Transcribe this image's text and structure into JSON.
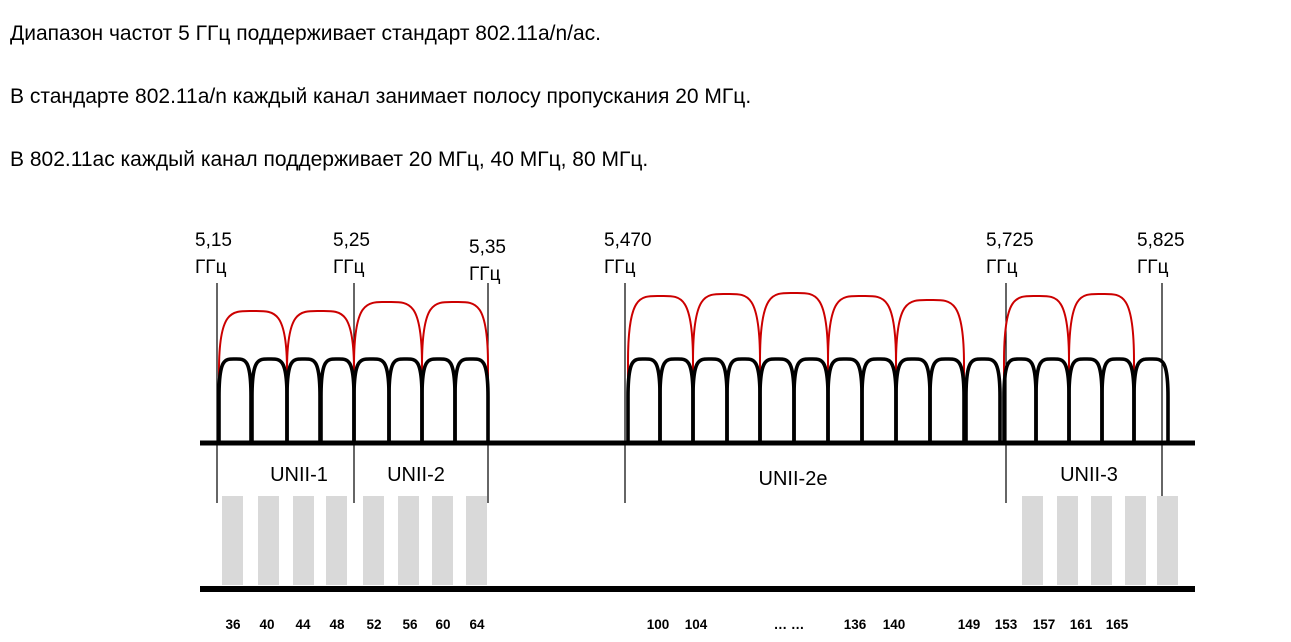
{
  "text_lines": [
    "Диапазон частот 5 ГГц поддерживает стандарт 802.11a/n/ac.",
    "В стандарте 802.11a/n каждый канал занимает полосу пропускания 20 МГц.",
    "В 802.11ac каждый канал поддерживает 20 МГц, 40 МГц, 80 МГц."
  ],
  "frequency_markers": [
    {
      "value": "5,15",
      "unit": "ГГц"
    },
    {
      "value": "5,25",
      "unit": "ГГц"
    },
    {
      "value": "5,35",
      "unit": "ГГц"
    },
    {
      "value": "5,470",
      "unit": "ГГц"
    },
    {
      "value": "5,725",
      "unit": "ГГц"
    },
    {
      "value": "5,825",
      "unit": "ГГц"
    }
  ],
  "bands": [
    "UNII-1",
    "UNII-2",
    "UNII-2e",
    "UNII-3"
  ],
  "channel_labels": [
    "36",
    "40",
    "44",
    "48",
    "52",
    "56",
    "60",
    "64",
    "100",
    "104",
    "… …",
    "136",
    "140",
    "149",
    "153",
    "157",
    "161",
    "165"
  ],
  "colors": {
    "channel_20mhz": "#000000",
    "channel_40mhz": "#cc0000",
    "channel_block": "#d9d9d9"
  }
}
